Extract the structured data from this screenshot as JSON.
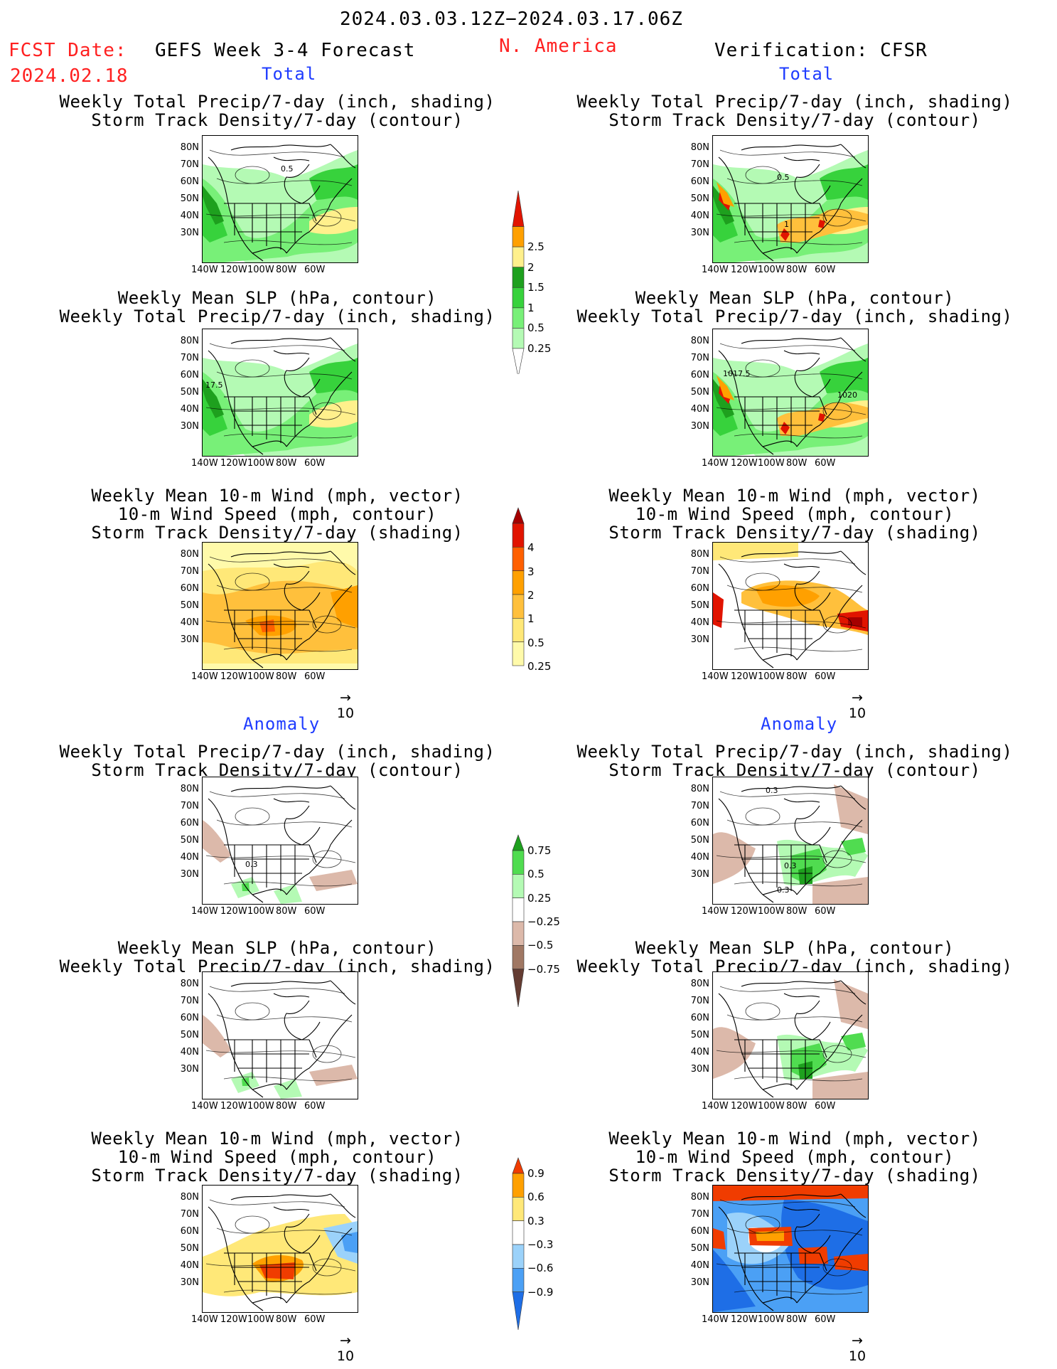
{
  "header": {
    "date_range": "2024.03.03.12Z−2024.03.17.06Z",
    "fcst_label": "FCST Date:",
    "fcst_date": "2024.02.18",
    "model_title": "GEFS Week 3-4 Forecast",
    "region": "N. America",
    "verification": "Verification: CFSR"
  },
  "sections": {
    "total_left": "Total",
    "total_right": "Total",
    "anomaly_left": "Anomaly",
    "anomaly_right": "Anomaly"
  },
  "titles": {
    "precip_storm": [
      "Weekly Total Precip/7-day (inch, shading)",
      "Storm Track Density/7-day (contour)"
    ],
    "slp_precip": [
      "Weekly Mean SLP (hPa, contour)",
      "Weekly Total Precip/7-day (inch, shading)"
    ],
    "wind_storm": [
      "Weekly Mean 10-m Wind (mph, vector)",
      "10-m Wind Speed (mph, contour)",
      "Storm Track Density/7-day (shading)"
    ]
  },
  "axes": {
    "lat_labels": [
      "80N",
      "70N",
      "60N",
      "50N",
      "40N",
      "30N"
    ],
    "lon_labels": [
      "140W",
      "120W",
      "100W",
      "80W",
      "60W"
    ]
  },
  "vector_ref": "10",
  "map_annotations": {
    "m1": "0.5",
    "m2": "0.5",
    "m2b": "0.5",
    "m2c": "1",
    "m3": "17.5",
    "m4a": "1017.5",
    "m4b": "1020",
    "m7": "0.3",
    "m8a": "0.3",
    "m8b": "0.3",
    "m8c": "0.3"
  },
  "colorbars": {
    "precip_total": {
      "colors": [
        "#b4fab4",
        "#78f078",
        "#37d23c",
        "#1ea01e",
        "#fff08c",
        "#ffc03c",
        "#ffa000",
        "#e11400"
      ],
      "labels": [
        "0.25",
        "0.5",
        "1",
        "1.5",
        "2",
        "2.5"
      ]
    },
    "storm_total": {
      "colors": [
        "#fffaaa",
        "#ffe878",
        "#ffc03c",
        "#ffa000",
        "#ff6000",
        "#e11400",
        "#a50000"
      ],
      "labels": [
        "0.25",
        "0.5",
        "1",
        "2",
        "3",
        "4"
      ]
    },
    "precip_anom": {
      "colors": [
        "#643c32",
        "#a07864",
        "#dcb9aa",
        "#ffffff",
        "#b4fab4",
        "#50dc50",
        "#1ea01e"
      ],
      "labels": [
        "0.75",
        "0.5",
        "0.25",
        "−0.25",
        "−0.5",
        "−0.75"
      ]
    },
    "storm_anom": {
      "colors": [
        "#1e6ee6",
        "#4ba0f5",
        "#9bd2fa",
        "#ffffff",
        "#ffe878",
        "#ffa000",
        "#f03c00"
      ],
      "labels": [
        "0.9",
        "0.6",
        "0.3",
        "−0.3",
        "−0.6",
        "−0.9"
      ]
    }
  }
}
